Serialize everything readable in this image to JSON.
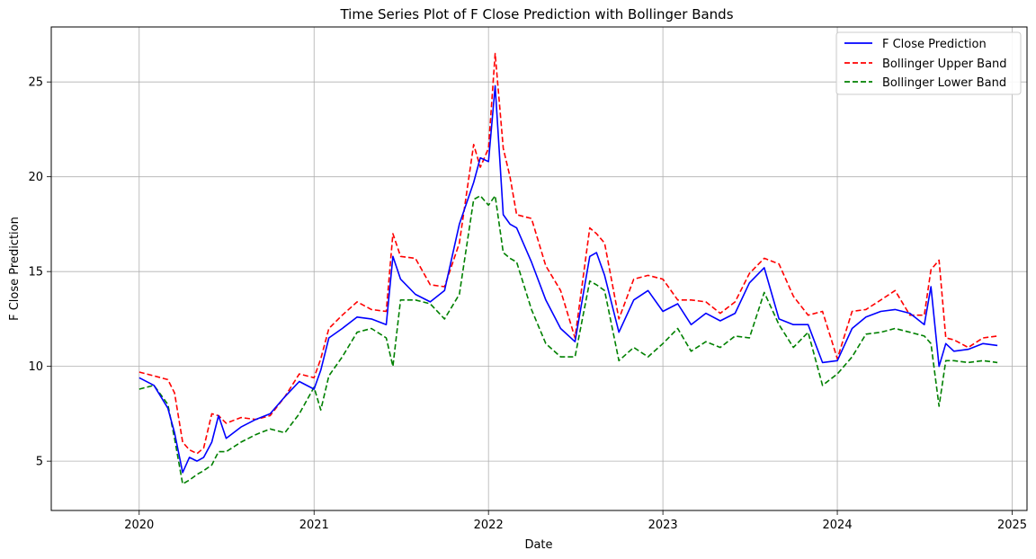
{
  "chart_data": {
    "type": "line",
    "title": "Time Series Plot of F Close Prediction with Bollinger Bands",
    "xlabel": "Date",
    "ylabel": "F Close Prediction",
    "xlim": [
      "2019-07-01",
      "2025-02-01"
    ],
    "ylim": [
      2.4,
      27.9
    ],
    "x_ticks": [
      "2020",
      "2021",
      "2022",
      "2023",
      "2024",
      "2025"
    ],
    "y_ticks": [
      5,
      10,
      15,
      20,
      25
    ],
    "grid": true,
    "legend_position": "top-right",
    "x_dates": [
      "2020-01-01",
      "2020-02-01",
      "2020-03-01",
      "2020-03-15",
      "2020-04-01",
      "2020-04-15",
      "2020-05-01",
      "2020-05-15",
      "2020-06-01",
      "2020-06-15",
      "2020-07-01",
      "2020-08-01",
      "2020-09-01",
      "2020-10-01",
      "2020-11-01",
      "2020-12-01",
      "2021-01-01",
      "2021-01-15",
      "2021-02-01",
      "2021-03-01",
      "2021-04-01",
      "2021-05-01",
      "2021-06-01",
      "2021-06-15",
      "2021-07-01",
      "2021-08-01",
      "2021-09-01",
      "2021-10-01",
      "2021-11-01",
      "2021-12-01",
      "2021-12-15",
      "2022-01-01",
      "2022-01-15",
      "2022-02-01",
      "2022-02-15",
      "2022-03-01",
      "2022-04-01",
      "2022-05-01",
      "2022-06-01",
      "2022-07-01",
      "2022-08-01",
      "2022-08-15",
      "2022-09-01",
      "2022-10-01",
      "2022-11-01",
      "2022-12-01",
      "2023-01-01",
      "2023-02-01",
      "2023-03-01",
      "2023-04-01",
      "2023-05-01",
      "2023-06-01",
      "2023-07-01",
      "2023-08-01",
      "2023-09-01",
      "2023-10-01",
      "2023-11-01",
      "2023-12-01",
      "2024-01-01",
      "2024-02-01",
      "2024-03-01",
      "2024-04-01",
      "2024-05-01",
      "2024-06-01",
      "2024-07-01",
      "2024-07-15",
      "2024-08-01",
      "2024-08-15",
      "2024-09-01",
      "2024-10-01",
      "2024-11-01",
      "2024-12-01"
    ],
    "series": [
      {
        "name": "F Close Prediction",
        "color": "#0000ff",
        "style": "solid",
        "values": [
          9.4,
          9.0,
          7.8,
          6.5,
          4.4,
          5.2,
          5.0,
          5.2,
          6.0,
          7.4,
          6.2,
          6.8,
          7.2,
          7.5,
          8.4,
          9.2,
          8.8,
          9.8,
          11.5,
          12.0,
          12.6,
          12.5,
          12.2,
          15.8,
          14.6,
          13.8,
          13.4,
          14.0,
          17.5,
          19.7,
          21.0,
          20.8,
          24.8,
          18.0,
          17.5,
          17.3,
          15.5,
          13.5,
          12.0,
          11.3,
          15.8,
          16.0,
          14.8,
          11.8,
          13.5,
          14.0,
          12.9,
          13.3,
          12.2,
          12.8,
          12.4,
          12.8,
          14.4,
          15.2,
          12.5,
          12.2,
          12.2,
          10.2,
          10.3,
          12.0,
          12.6,
          12.9,
          13.0,
          12.8,
          12.2,
          14.2,
          10.0,
          11.2,
          10.8,
          10.9,
          11.2,
          11.1
        ]
      },
      {
        "name": "Bollinger Upper Band",
        "color": "#ff0000",
        "style": "dashed",
        "values": [
          9.7,
          9.5,
          9.3,
          8.6,
          6.0,
          5.6,
          5.4,
          5.7,
          7.5,
          7.4,
          7.0,
          7.3,
          7.2,
          7.4,
          8.4,
          9.6,
          9.4,
          10.4,
          12.0,
          12.7,
          13.4,
          13.0,
          12.9,
          17.0,
          15.8,
          15.7,
          14.3,
          14.2,
          16.5,
          21.7,
          20.5,
          21.5,
          26.5,
          21.5,
          20.0,
          18.0,
          17.8,
          15.3,
          14.0,
          11.5,
          17.3,
          17.0,
          16.5,
          12.5,
          14.6,
          14.8,
          14.6,
          13.5,
          13.5,
          13.4,
          12.8,
          13.4,
          14.9,
          15.7,
          15.4,
          13.7,
          12.7,
          12.9,
          10.4,
          12.9,
          13.0,
          13.5,
          14.0,
          12.7,
          12.7,
          15.1,
          15.6,
          11.5,
          11.4,
          11.0,
          11.5,
          11.6
        ]
      },
      {
        "name": "Bollinger Lower Band",
        "color": "#008000",
        "style": "dashed",
        "values": [
          8.8,
          9.0,
          8.0,
          6.2,
          3.8,
          4.0,
          4.3,
          4.5,
          4.8,
          5.5,
          5.5,
          6.0,
          6.4,
          6.7,
          6.5,
          7.5,
          8.9,
          7.7,
          9.5,
          10.5,
          11.8,
          12.0,
          11.5,
          10.0,
          13.5,
          13.5,
          13.3,
          12.5,
          13.8,
          18.8,
          19.0,
          18.5,
          19.0,
          16.0,
          15.7,
          15.5,
          13.0,
          11.2,
          10.5,
          10.5,
          14.5,
          14.3,
          14.0,
          10.3,
          11.0,
          10.5,
          11.2,
          12.0,
          10.8,
          11.3,
          11.0,
          11.6,
          11.5,
          13.9,
          12.2,
          11.0,
          11.8,
          9.0,
          9.6,
          10.5,
          11.7,
          11.8,
          12.0,
          11.8,
          11.6,
          11.2,
          7.9,
          10.3,
          10.3,
          10.2,
          10.3,
          10.2
        ]
      }
    ]
  }
}
